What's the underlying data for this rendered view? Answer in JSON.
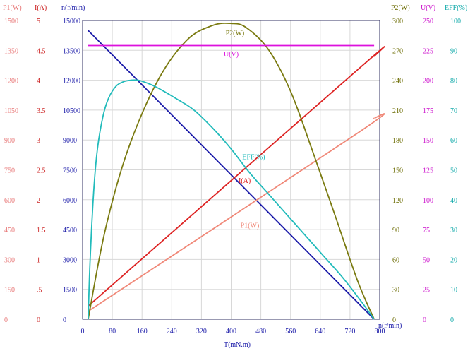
{
  "chart_data": {
    "type": "line",
    "xlabel": "T(mN.m)",
    "x_ticks": [
      0,
      80,
      160,
      240,
      320,
      400,
      480,
      560,
      640,
      720,
      800
    ],
    "xlim": [
      0,
      800
    ],
    "axes": [
      {
        "id": "p1",
        "label": "P1(W)",
        "min": 0,
        "max": 1500,
        "ticks": [
          "0",
          "150",
          "300",
          "450",
          "600",
          "750",
          "900",
          "1050",
          "1200",
          "1350",
          "1500"
        ],
        "color": "#e87878"
      },
      {
        "id": "i",
        "label": "I(A)",
        "min": 0,
        "max": 5,
        "ticks": [
          "0",
          ".5",
          "1",
          "1.5",
          "2",
          "2.5",
          "3",
          "3.5",
          "4",
          "4.5",
          "5"
        ],
        "color": "#cc2222"
      },
      {
        "id": "n",
        "label": "n(r/min)",
        "min": 0,
        "max": 15000,
        "ticks": [
          "0",
          "1500",
          "3000",
          "4500",
          "6000",
          "7500",
          "9000",
          "10500",
          "12000",
          "13500",
          "15000"
        ],
        "color": "#1a1aa8"
      },
      {
        "id": "p2",
        "label": "P2(W)",
        "min": 0,
        "max": 300,
        "ticks": [
          "0",
          "30",
          "60",
          "90",
          "120",
          "150",
          "180",
          "210",
          "240",
          "270",
          "300"
        ],
        "color": "#6b6b00"
      },
      {
        "id": "u",
        "label": "U(V)",
        "min": 0,
        "max": 250,
        "ticks": [
          "0",
          "25",
          "50",
          "75",
          "100",
          "125",
          "150",
          "175",
          "200",
          "225",
          "250"
        ],
        "color": "#cc11cc"
      },
      {
        "id": "eff",
        "label": "EFF(%)",
        "min": 0,
        "max": 100,
        "ticks": [
          "0",
          "10",
          "20",
          "30",
          "40",
          "50",
          "60",
          "70",
          "80",
          "90",
          "100"
        ],
        "color": "#11aaaa"
      }
    ],
    "series": [
      {
        "name": "n(r/min)",
        "axis": "n",
        "color": "#1a1aa8",
        "x": [
          15,
          785
        ],
        "y": [
          14500,
          0
        ]
      },
      {
        "name": "I(A)",
        "axis": "i",
        "color": "#dd2222",
        "x": [
          15,
          745,
          785
        ],
        "y": [
          0.22,
          4.2,
          4.4
        ]
      },
      {
        "name": "P1(W)",
        "axis": "p1",
        "color": "#f08878",
        "x": [
          15,
          745,
          785
        ],
        "y": [
          40,
          940,
          1010
        ]
      },
      {
        "name": "P2(W)",
        "axis": "p2",
        "color": "#7a7a10",
        "x": [
          15,
          60,
          120,
          200,
          280,
          350,
          400,
          440,
          500,
          560,
          620,
          680,
          740,
          785
        ],
        "y": [
          0,
          88,
          168,
          238,
          280,
          295,
          297,
          293,
          271,
          229,
          168,
          104,
          39,
          0
        ]
      },
      {
        "name": "U(V)",
        "axis": "u",
        "color": "#dd11dd",
        "x": [
          15,
          785
        ],
        "y": [
          229,
          229
        ]
      },
      {
        "name": "EFF(%)",
        "axis": "eff",
        "color": "#22bbbb",
        "x": [
          15,
          20,
          30,
          40,
          55,
          70,
          90,
          110,
          130,
          150,
          175,
          200,
          250,
          300,
          350,
          400,
          450,
          500,
          550,
          600,
          650,
          700,
          750,
          785
        ],
        "y": [
          0,
          19,
          43,
          57,
          68,
          74,
          78,
          79.5,
          80,
          80,
          79,
          77.6,
          74,
          70,
          64,
          57,
          49,
          42,
          35,
          28,
          21,
          14,
          6,
          0
        ]
      }
    ],
    "annotations": [
      {
        "text": "P2(W)",
        "series": "P2(W)",
        "x": 385,
        "y": 285
      },
      {
        "text": "U(V)",
        "series": "U(V)",
        "x": 380,
        "y": 220
      },
      {
        "text": "EFF(%)",
        "series": "EFF(%)",
        "x": 430,
        "y": 53.5
      },
      {
        "text": "I(A)",
        "series": "I(A)",
        "x": 420,
        "y": 2.28
      },
      {
        "text": "P1(W)",
        "series": "P1(W)",
        "x": 425,
        "y": 460
      },
      {
        "text": "n(r/min)",
        "series": "n(r/min)",
        "x": 800,
        "y": -300
      }
    ]
  }
}
